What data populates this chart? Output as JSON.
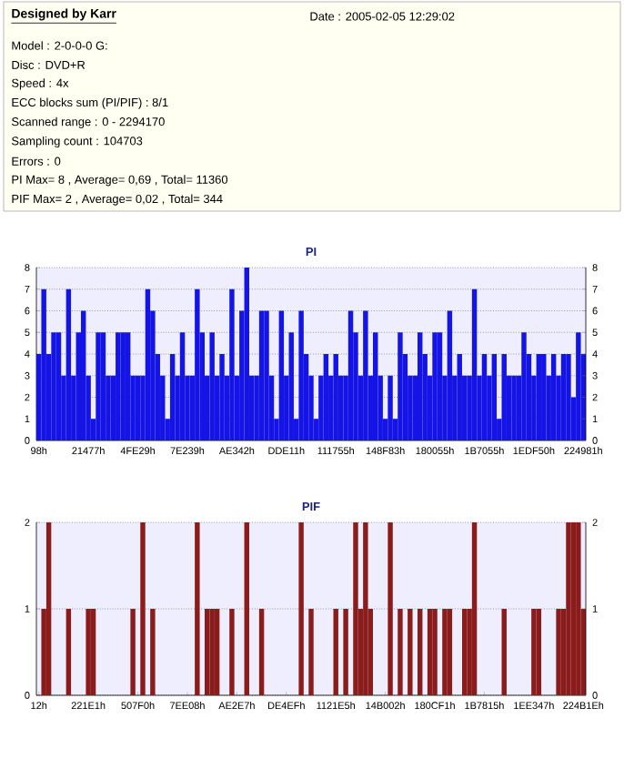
{
  "chart_data": [
    {
      "type": "other",
      "title": "Designed by Karr",
      "subtitle": "Date : 2005-02-05 12:29:02",
      "annotations": [
        "Model : 2-0-0-0 G:",
        "Disc : DVD+R",
        "Speed : 4x",
        "ECC blocks sum (PI/PIF) : 8/1",
        "Scanned range : 0 - 2294170",
        "Sampling count : 104703",
        "Errors : 0",
        "PI Max= 8 , Average= 0,69 , Total= 11360",
        "PIF Max= 2 , Average= 0,02 , Total= 344"
      ]
    },
    {
      "type": "bar",
      "title": "PI",
      "color": "#1414e6",
      "grid": "y",
      "categories": [
        "98h",
        null,
        null,
        null,
        null,
        null,
        null,
        null,
        null,
        null,
        "21477h",
        null,
        null,
        null,
        null,
        null,
        null,
        null,
        null,
        null,
        "4FE29h",
        null,
        null,
        null,
        null,
        null,
        null,
        null,
        null,
        null,
        "7E239h",
        null,
        null,
        null,
        null,
        null,
        null,
        null,
        null,
        null,
        "AE342h",
        null,
        null,
        null,
        null,
        null,
        null,
        null,
        null,
        null,
        "DDE11h",
        null,
        null,
        null,
        null,
        null,
        null,
        null,
        null,
        null,
        "111755h",
        null,
        null,
        null,
        null,
        null,
        null,
        null,
        null,
        null,
        "148F83h",
        null,
        null,
        null,
        null,
        null,
        null,
        null,
        null,
        null,
        "180055h",
        null,
        null,
        null,
        null,
        null,
        null,
        null,
        null,
        null,
        "1B7055h",
        null,
        null,
        null,
        null,
        null,
        null,
        null,
        null,
        null,
        "1EDF50h",
        null,
        null,
        null,
        null,
        null,
        null,
        null,
        null,
        null,
        "224981h"
      ],
      "values": [
        4,
        7,
        4,
        5,
        5,
        3,
        7,
        3,
        5,
        6,
        3,
        1,
        5,
        5,
        3,
        3,
        5,
        5,
        5,
        3,
        3,
        3,
        7,
        6,
        4,
        3,
        1,
        4,
        3,
        5,
        3,
        3,
        7,
        5,
        3,
        5,
        3,
        4,
        3,
        7,
        3,
        6,
        8,
        3,
        3,
        6,
        6,
        3,
        1,
        6,
        3,
        5,
        1,
        6,
        4,
        3,
        1,
        3,
        4,
        3,
        4,
        3,
        3,
        6,
        5,
        3,
        6,
        3,
        5,
        3,
        1,
        3,
        1,
        5,
        4,
        3,
        3,
        5,
        4,
        3,
        5,
        5,
        3,
        6,
        3,
        4,
        3,
        3,
        7,
        3,
        4,
        3,
        4,
        1,
        4,
        3,
        3,
        3,
        5,
        4,
        3,
        4,
        4,
        3,
        4,
        3,
        4,
        4,
        2,
        5,
        4
      ],
      "ylim": [
        0,
        8
      ],
      "yticks": [
        0,
        1,
        2,
        3,
        4,
        5,
        6,
        7,
        8
      ],
      "y2lim": [
        0,
        8
      ],
      "y2ticks": [
        0,
        1,
        2,
        3,
        4,
        5,
        6,
        7,
        8
      ]
    },
    {
      "type": "bar",
      "title": "PIF",
      "color": "#8b1c1c",
      "grid": "y",
      "categories": [
        "12h",
        null,
        null,
        null,
        null,
        null,
        null,
        null,
        null,
        null,
        "221E1h",
        null,
        null,
        null,
        null,
        null,
        null,
        null,
        null,
        null,
        "507F0h",
        null,
        null,
        null,
        null,
        null,
        null,
        null,
        null,
        null,
        "7EE08h",
        null,
        null,
        null,
        null,
        null,
        null,
        null,
        null,
        null,
        "AE2E7h",
        null,
        null,
        null,
        null,
        null,
        null,
        null,
        null,
        null,
        "DE4EFh",
        null,
        null,
        null,
        null,
        null,
        null,
        null,
        null,
        null,
        "1121E5h",
        null,
        null,
        null,
        null,
        null,
        null,
        null,
        null,
        null,
        "14B002h",
        null,
        null,
        null,
        null,
        null,
        null,
        null,
        null,
        null,
        "180CF1h",
        null,
        null,
        null,
        null,
        null,
        null,
        null,
        null,
        null,
        "1B7815h",
        null,
        null,
        null,
        null,
        null,
        null,
        null,
        null,
        null,
        "1EE347h",
        null,
        null,
        null,
        null,
        null,
        null,
        null,
        null,
        null,
        "224B1Eh"
      ],
      "values": [
        0,
        1,
        2,
        0,
        0,
        0,
        1,
        0,
        0,
        0,
        1,
        1,
        0,
        0,
        0,
        0,
        0,
        0,
        0,
        1,
        0,
        2,
        0,
        1,
        0,
        0,
        0,
        0,
        0,
        0,
        0,
        0,
        2,
        0,
        1,
        1,
        1,
        0,
        0,
        1,
        0,
        0,
        2,
        0,
        0,
        1,
        0,
        0,
        0,
        0,
        0,
        0,
        0,
        2,
        0,
        1,
        0,
        0,
        0,
        0,
        1,
        0,
        1,
        0,
        2,
        1,
        2,
        1,
        0,
        0,
        0,
        2,
        0,
        1,
        0,
        1,
        0,
        1,
        0,
        1,
        1,
        0,
        1,
        1,
        0,
        0,
        1,
        1,
        2,
        0,
        0,
        0,
        0,
        0,
        1,
        0,
        0,
        0,
        0,
        0,
        1,
        1,
        0,
        0,
        0,
        1,
        1,
        2,
        2,
        2,
        1
      ],
      "ylim": [
        0,
        2
      ],
      "yticks": [
        0,
        1,
        2
      ],
      "y2lim": [
        0,
        2
      ],
      "y2ticks": [
        0,
        1,
        2
      ]
    }
  ]
}
